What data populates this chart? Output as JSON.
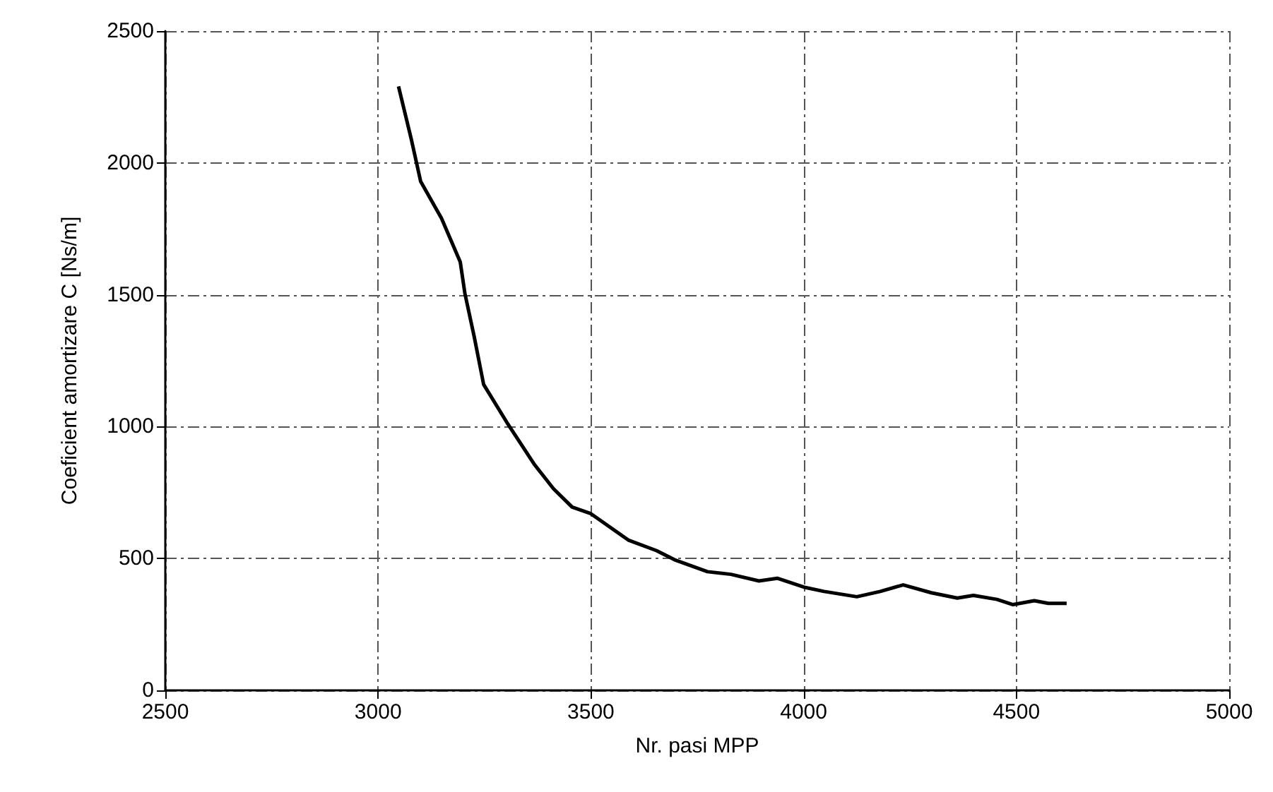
{
  "chart_data": {
    "type": "line",
    "xlabel": "Nr. pasi MPP",
    "ylabel": "Coeficient amortizare C [Ns/m]",
    "x": [
      3048,
      3078,
      3100,
      3149,
      3193,
      3204,
      3226,
      3248,
      3303,
      3368,
      3412,
      3456,
      3500,
      3588,
      3654,
      3697,
      3774,
      3829,
      3895,
      3938,
      4004,
      4048,
      4125,
      4180,
      4234,
      4300,
      4361,
      4399,
      4454,
      4492,
      4542,
      4575,
      4618
    ],
    "series": [
      {
        "color": "#000000",
        "values": [
          2290,
          2090,
          1930,
          1790,
          1625,
          1505,
          1340,
          1160,
          1015,
          855,
          765,
          695,
          670,
          570,
          530,
          495,
          450,
          440,
          415,
          425,
          390,
          375,
          355,
          375,
          400,
          370,
          350,
          360,
          345,
          325,
          340,
          330,
          330
        ]
      }
    ],
    "xlim": [
      2500,
      5000
    ],
    "xticks": [
      2500,
      3000,
      3500,
      4000,
      4500,
      5000
    ],
    "ylim": [
      0,
      2500
    ],
    "yticks": [
      0,
      500,
      1000,
      1500,
      2000,
      2500
    ],
    "grid": true,
    "marker": "none",
    "line_style": "solid"
  }
}
